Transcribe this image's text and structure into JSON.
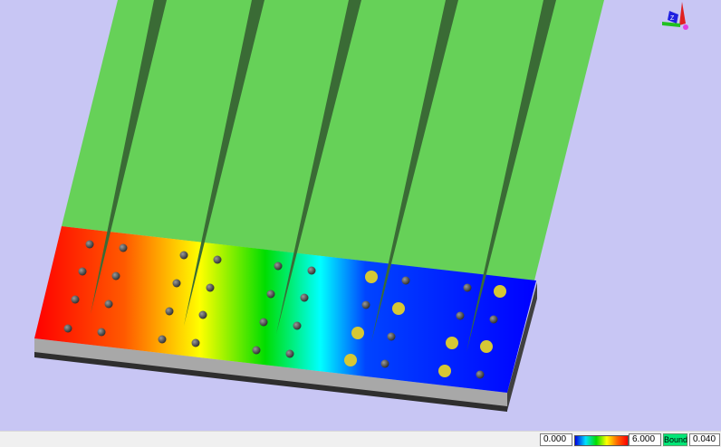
{
  "viewport": {
    "background_color": "#c8c6f4",
    "field_gradient": [
      "#ff0000",
      "#ff6600",
      "#ffff00",
      "#00dd00",
      "#00ffff",
      "#0000ee",
      "#0000ff"
    ],
    "strip_color": "#66d158",
    "fin_color": "#3a6b35",
    "dot_dark_color": "#3c3c3c",
    "dot_yellow_color": "#d6c834",
    "axis_icon": "xyz-axis-triad-icon",
    "axis_label_z": "Z"
  },
  "legend": {
    "min_value": "0.000",
    "max_value": "6.000",
    "bound_label": "Bound",
    "bound_value": "0.040"
  }
}
